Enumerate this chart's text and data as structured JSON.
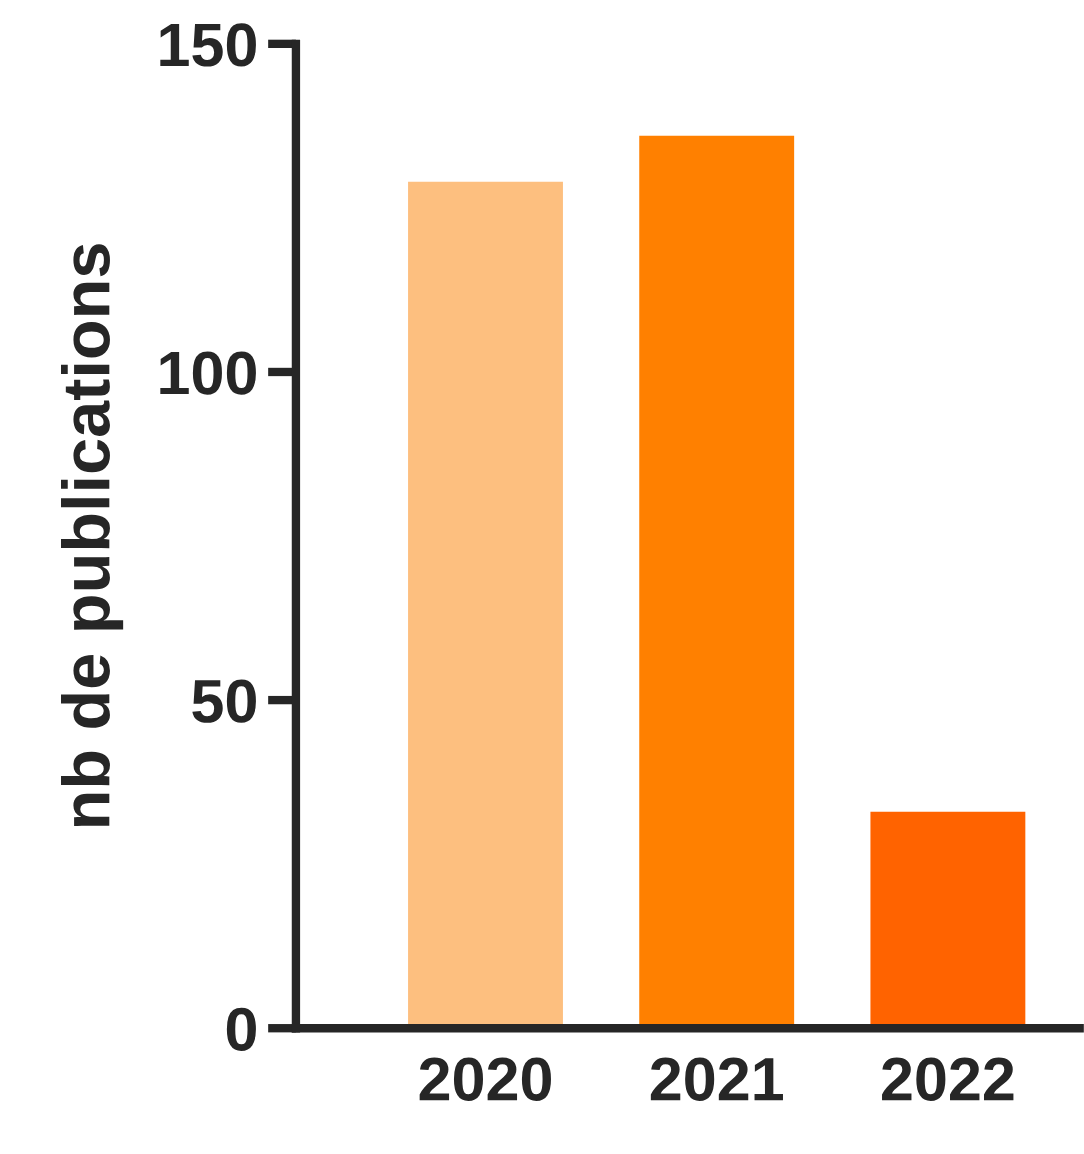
{
  "chart_data": {
    "type": "bar",
    "ylabel": "nb de publications",
    "categories": [
      "2020",
      "2021",
      "2022"
    ],
    "values": [
      129,
      136,
      33
    ],
    "colors": [
      "#fdbf7f",
      "#ff8000",
      "#ff6300"
    ],
    "ylim": [
      0,
      150
    ],
    "yticks": [
      0,
      50,
      100,
      150
    ],
    "grid": false,
    "legend": false
  }
}
